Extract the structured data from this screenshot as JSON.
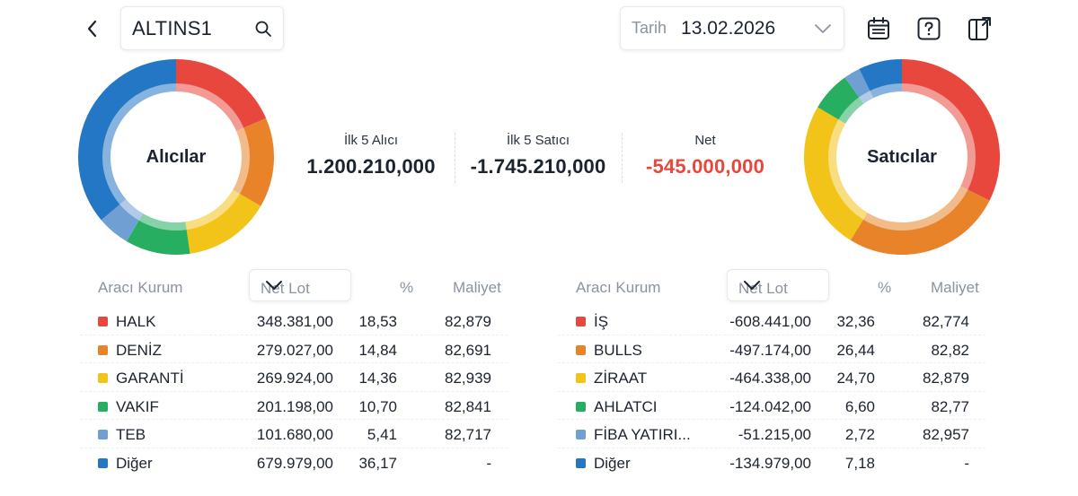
{
  "header": {
    "search_value": "ALTINS1",
    "date_label": "Tarih",
    "date_value": "13.02.2026"
  },
  "icons": {
    "back": "chevron-left-icon",
    "search": "search-icon",
    "date_dropdown": "chevron-down-icon",
    "calendar": "calendar-icon",
    "help": "help-icon",
    "export": "export-icon"
  },
  "colors": {
    "red": "#e8473d",
    "orange": "#e8832a",
    "yellow": "#f2c318",
    "green": "#27ae60",
    "lightblue": "#6f9fd3",
    "blue": "#2377c4"
  },
  "buyers": {
    "label": "Alıcılar",
    "slices": [
      {
        "name": "HALK",
        "value": 18.53,
        "color": "#e8473d"
      },
      {
        "name": "DENİZ",
        "value": 14.84,
        "color": "#e8832a"
      },
      {
        "name": "GARANTİ",
        "value": 14.36,
        "color": "#f2c318"
      },
      {
        "name": "VAKIF",
        "value": 10.7,
        "color": "#27ae60"
      },
      {
        "name": "TEB",
        "value": 5.41,
        "color": "#6f9fd3"
      },
      {
        "name": "Diğer",
        "value": 36.17,
        "color": "#2377c4"
      }
    ]
  },
  "sellers": {
    "label": "Satıcılar",
    "slices": [
      {
        "name": "İŞ",
        "value": 32.36,
        "color": "#e8473d"
      },
      {
        "name": "BULLS",
        "value": 26.44,
        "color": "#e8832a"
      },
      {
        "name": "ZİRAAT",
        "value": 24.7,
        "color": "#f2c318"
      },
      {
        "name": "AHLATCI",
        "value": 6.6,
        "color": "#27ae60"
      },
      {
        "name": "FİBA YATIRI...",
        "value": 2.72,
        "color": "#6f9fd3"
      },
      {
        "name": "Diğer",
        "value": 7.18,
        "color": "#2377c4"
      }
    ]
  },
  "summary": {
    "buyers_title": "İlk 5 Alıcı",
    "buyers_value": "1.200.210,000",
    "sellers_title": "İlk 5 Satıcı",
    "sellers_value": "-1.745.210,000",
    "net_title": "Net",
    "net_value": "-545.000,000"
  },
  "buyers_table": {
    "col_broker": "Aracı Kurum",
    "col_sort": "Net Lot",
    "col_pct": "%",
    "col_cost": "Maliyet",
    "rows": [
      {
        "name": "HALK",
        "lot": "348.381,00",
        "pct": "18,53",
        "cost": "82,879",
        "color": "#e8473d"
      },
      {
        "name": "DENİZ",
        "lot": "279.027,00",
        "pct": "14,84",
        "cost": "82,691",
        "color": "#e8832a"
      },
      {
        "name": "GARANTİ",
        "lot": "269.924,00",
        "pct": "14,36",
        "cost": "82,939",
        "color": "#f2c318"
      },
      {
        "name": "VAKIF",
        "lot": "201.198,00",
        "pct": "10,70",
        "cost": "82,841",
        "color": "#27ae60"
      },
      {
        "name": "TEB",
        "lot": "101.680,00",
        "pct": "5,41",
        "cost": "82,717",
        "color": "#6f9fd3"
      },
      {
        "name": "Diğer",
        "lot": "679.979,00",
        "pct": "36,17",
        "cost": "-",
        "color": "#2377c4"
      }
    ]
  },
  "sellers_table": {
    "col_broker": "Aracı Kurum",
    "col_sort": "Net Lot",
    "col_pct": "%",
    "col_cost": "Maliyet",
    "rows": [
      {
        "name": "İŞ",
        "lot": "-608.441,00",
        "pct": "32,36",
        "cost": "82,774",
        "color": "#e8473d"
      },
      {
        "name": "BULLS",
        "lot": "-497.174,00",
        "pct": "26,44",
        "cost": "82,82",
        "color": "#e8832a"
      },
      {
        "name": "ZİRAAT",
        "lot": "-464.338,00",
        "pct": "24,70",
        "cost": "82,879",
        "color": "#f2c318"
      },
      {
        "name": "AHLATCI",
        "lot": "-124.042,00",
        "pct": "6,60",
        "cost": "82,77",
        "color": "#27ae60"
      },
      {
        "name": "FİBA YATIRI...",
        "lot": "-51.215,00",
        "pct": "2,72",
        "cost": "82,957",
        "color": "#6f9fd3"
      },
      {
        "name": "Diğer",
        "lot": "-134.979,00",
        "pct": "7,18",
        "cost": "-",
        "color": "#2377c4"
      }
    ]
  }
}
